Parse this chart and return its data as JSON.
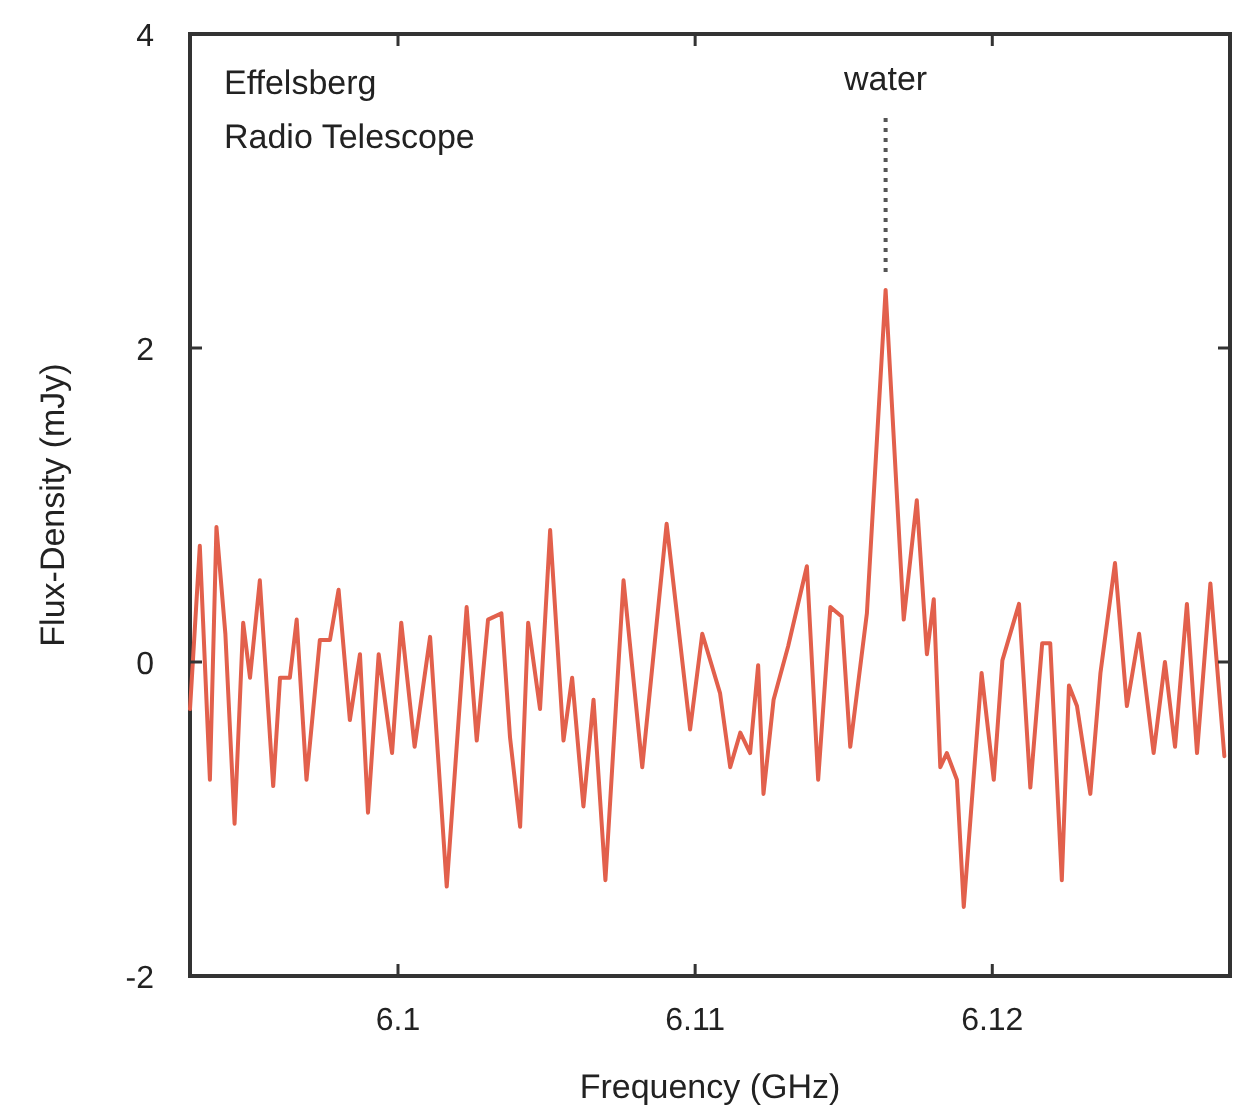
{
  "chart_data": {
    "type": "line",
    "xlabel": "Frequency (GHz)",
    "ylabel": "Flux-Density (mJy)",
    "annotations": [
      "Effelsberg\nRadio Telescope",
      {
        "text": "water",
        "x": 6.11641,
        "y": 2.37
      }
    ],
    "xlim": [
      6.093,
      6.128
    ],
    "xticks": [
      6.1,
      6.11,
      6.12
    ],
    "ylim": [
      -2,
      4
    ],
    "yticks": [
      -2,
      0,
      2,
      4
    ],
    "grid": false,
    "marker": "none",
    "line_style": "solid",
    "series": [
      {
        "color": "#e2604c",
        "x": [
          6.093,
          6.09333,
          6.09367,
          6.09389,
          6.09419,
          6.0945,
          6.09479,
          6.09502,
          6.09535,
          6.0958,
          6.09603,
          6.09636,
          6.09659,
          6.09692,
          6.09737,
          6.09771,
          6.098,
          6.09838,
          6.09872,
          6.09899,
          6.09935,
          6.0998,
          6.10011,
          6.10056,
          6.10108,
          6.10164,
          6.10231,
          6.10265,
          6.10303,
          6.10348,
          6.10377,
          6.10411,
          6.10438,
          6.10478,
          6.10512,
          6.10557,
          6.10586,
          6.10624,
          6.10658,
          6.10698,
          6.10759,
          6.10822,
          6.10904,
          6.10983,
          6.11024,
          6.11084,
          6.11118,
          6.11152,
          6.11185,
          6.11212,
          6.1123,
          6.11264,
          6.11313,
          6.11376,
          6.11414,
          6.11455,
          6.11493,
          6.11522,
          6.11578,
          6.11641,
          6.11702,
          6.11746,
          6.1178,
          6.11803,
          6.11825,
          6.11847,
          6.11881,
          6.11904,
          6.11964,
          6.12005,
          6.12034,
          6.1209,
          6.12128,
          6.12168,
          6.12195,
          6.12234,
          6.12258,
          6.12285,
          6.1233,
          6.12364,
          6.12413,
          6.12453,
          6.12494,
          6.12543,
          6.12581,
          6.12615,
          6.12655,
          6.12689,
          6.12734,
          6.12781
        ],
        "values": [
          -0.3,
          0.74,
          -0.75,
          0.86,
          0.18,
          -1.03,
          0.25,
          -0.1,
          0.52,
          -0.79,
          -0.1,
          -0.1,
          0.27,
          -0.75,
          0.14,
          0.14,
          0.46,
          -0.37,
          0.05,
          -0.96,
          0.05,
          -0.58,
          0.25,
          -0.54,
          0.16,
          -1.43,
          0.35,
          -0.5,
          0.27,
          0.31,
          -0.48,
          -1.05,
          0.25,
          -0.3,
          0.84,
          -0.5,
          -0.1,
          -0.92,
          -0.24,
          -1.39,
          0.52,
          -0.67,
          0.88,
          -0.43,
          0.18,
          -0.2,
          -0.67,
          -0.45,
          -0.58,
          -0.02,
          -0.84,
          -0.24,
          0.1,
          0.61,
          -0.75,
          0.35,
          0.29,
          -0.54,
          0.31,
          2.37,
          0.27,
          1.03,
          0.05,
          0.4,
          -0.67,
          -0.58,
          -0.75,
          -1.56,
          -0.07,
          -0.75,
          0.01,
          0.37,
          -0.8,
          0.12,
          0.12,
          -1.39,
          -0.15,
          -0.28,
          -0.84,
          -0.07,
          0.63,
          -0.28,
          0.18,
          -0.58,
          0,
          -0.54,
          0.37,
          -0.58,
          0.5,
          -0.6
        ]
      }
    ]
  }
}
